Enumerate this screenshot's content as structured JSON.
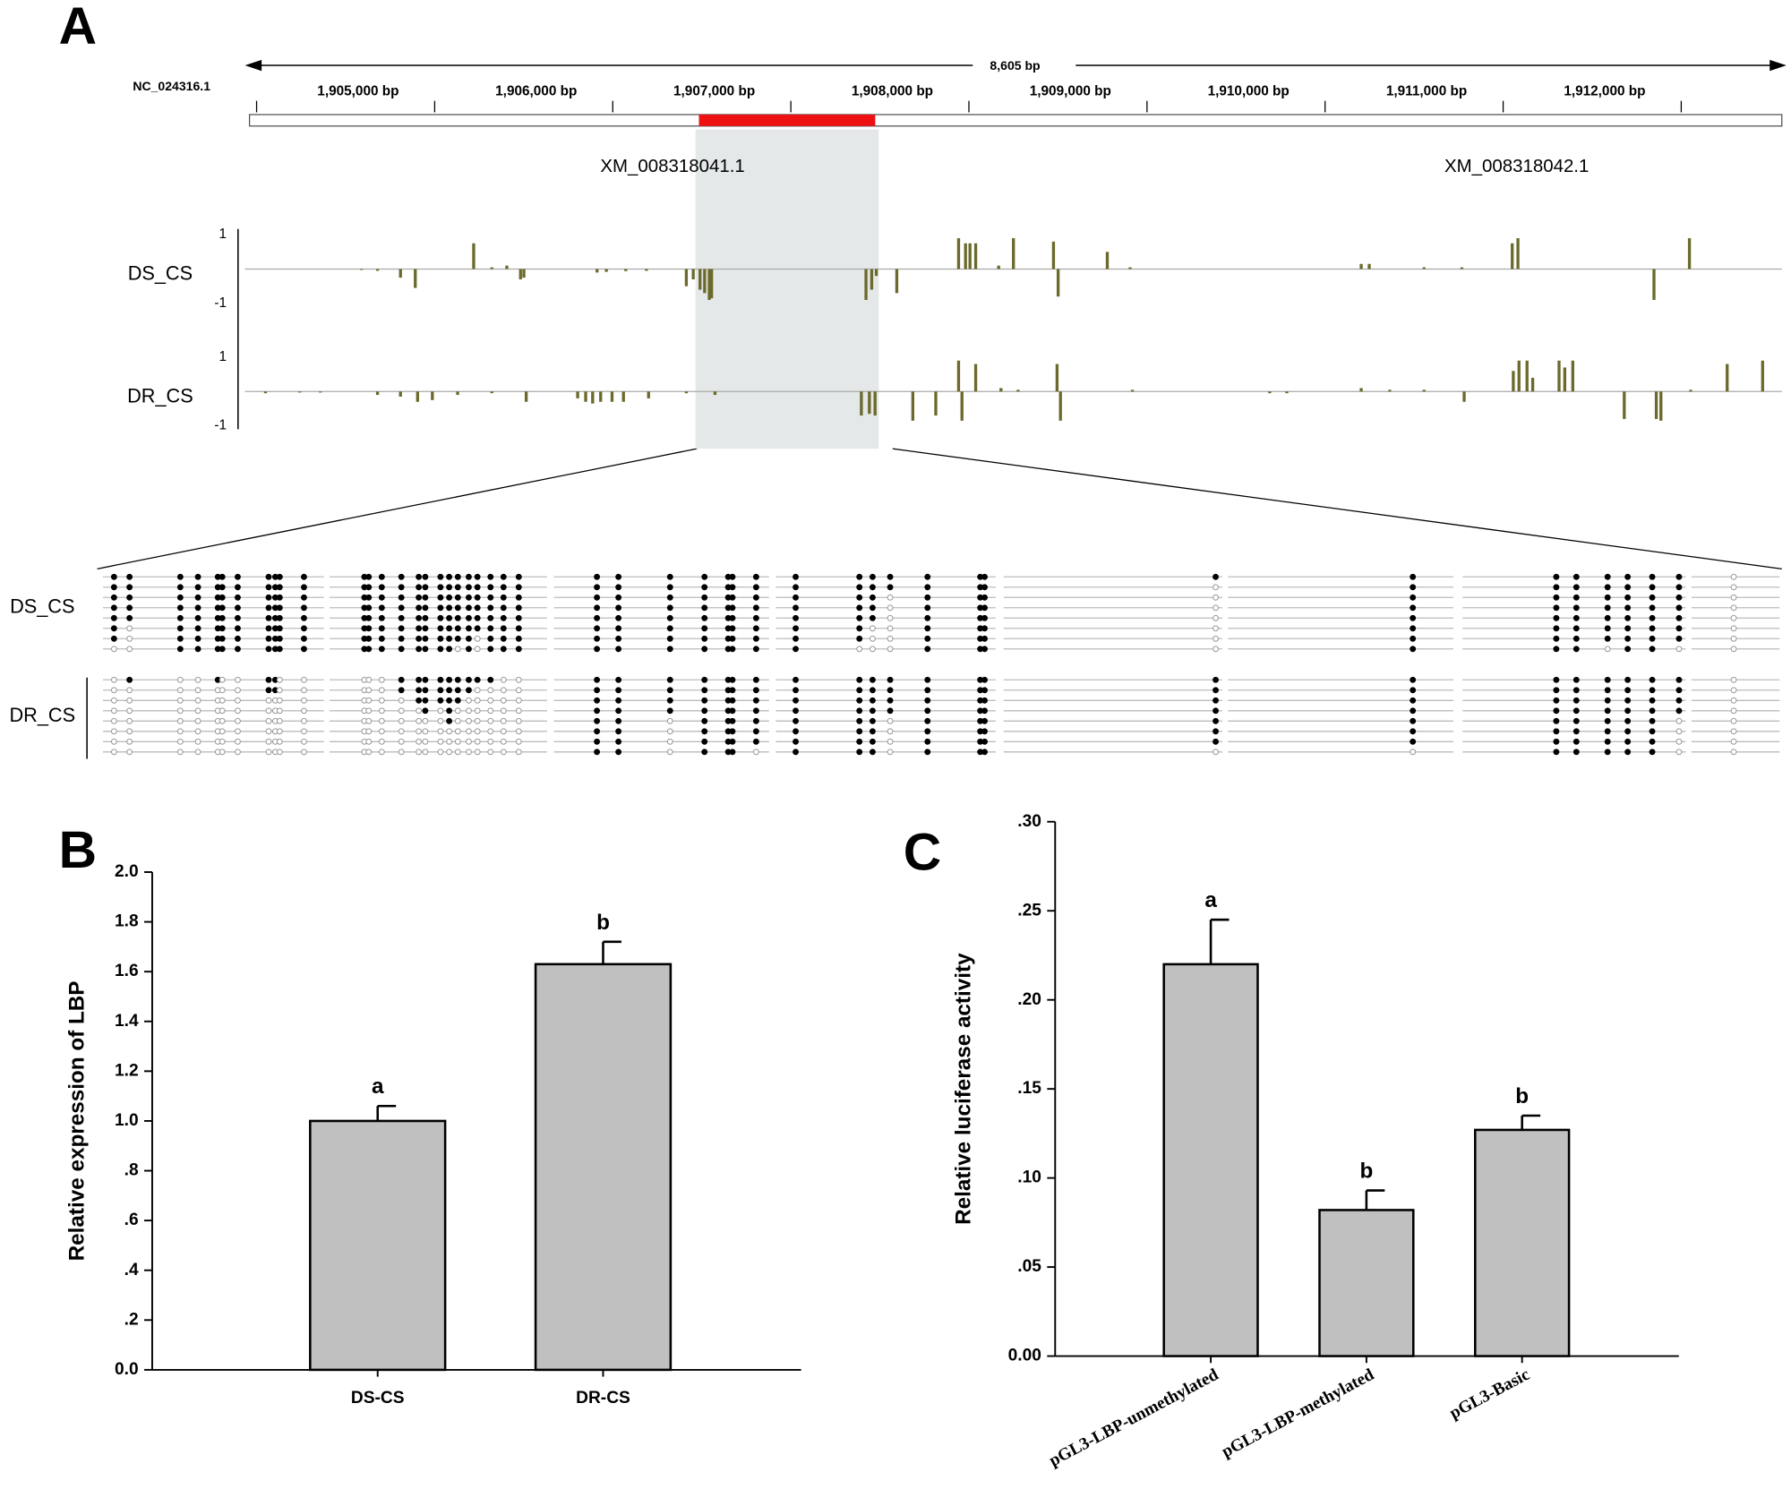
{
  "panel_labels": [
    "A",
    "B",
    "C"
  ],
  "genome": {
    "chromosome": "NC_024316.1",
    "span_label": "8,605 bp",
    "xlim": [
      1904390,
      1912995
    ],
    "xticks": [
      {
        "value": 1905000,
        "label": "1,905,000 bp"
      },
      {
        "value": 1906000,
        "label": "1,906,000 bp"
      },
      {
        "value": 1907000,
        "label": "1,907,000 bp"
      },
      {
        "value": 1908000,
        "label": "1,908,000 bp"
      },
      {
        "value": 1909000,
        "label": "1,909,000 bp"
      },
      {
        "value": 1910000,
        "label": "1,910,000 bp"
      },
      {
        "value": 1911000,
        "label": "1,911,000 bp"
      },
      {
        "value": 1912000,
        "label": "1,912,000 bp"
      }
    ],
    "minor_xticks": [
      1904430,
      1905430,
      1906430,
      1907430,
      1908430,
      1909430,
      1910430,
      1911430,
      1912430
    ],
    "region": [
      1906914,
      1907904
    ],
    "genes": [
      {
        "label": "XM_008318041.1",
        "position": 1906766
      },
      {
        "label": "XM_008318042.1",
        "position": 1911506
      }
    ],
    "color": "#6b6a2c",
    "ylim": [
      -1,
      1
    ],
    "yticks": [
      1,
      -1
    ],
    "tracks": [
      {
        "name": "DS_CS",
        "x": [
          1905019,
          1905109,
          1905238,
          1905321,
          1905649,
          1905751,
          1905835,
          1905912,
          1905931,
          1906342,
          1906394,
          1906503,
          1906619,
          1906843,
          1906882,
          1906920,
          1906946,
          1906972,
          1906985,
          1907852,
          1907884,
          1907910,
          1908025,
          1908372,
          1908411,
          1908436,
          1908468,
          1908597,
          1908680,
          1908905,
          1908931,
          1909207,
          1909335,
          1910633,
          1910678,
          1910986,
          1911198,
          1911481,
          1911513,
          1912277,
          1912476
        ],
        "values": [
          -0.02,
          -0.05,
          -0.25,
          -0.55,
          0.75,
          0.05,
          0.1,
          -0.3,
          -0.25,
          -0.1,
          -0.08,
          -0.06,
          -0.05,
          -0.5,
          -0.3,
          -0.6,
          -0.7,
          -0.9,
          -0.85,
          -0.9,
          -0.6,
          -0.2,
          -0.7,
          0.9,
          0.75,
          0.75,
          0.75,
          0.1,
          0.9,
          0.8,
          -0.8,
          0.5,
          0.05,
          0.15,
          0.15,
          0.05,
          0.05,
          0.75,
          0.9,
          -0.9,
          0.9
        ]
      },
      {
        "name": "DR_CS",
        "x": [
          1904480,
          1904672,
          1904788,
          1905109,
          1905238,
          1905334,
          1905417,
          1905559,
          1905751,
          1905944,
          1906233,
          1906278,
          1906317,
          1906362,
          1906426,
          1906490,
          1906631,
          1906843,
          1907004,
          1907826,
          1907871,
          1907903,
          1908115,
          1908244,
          1908372,
          1908391,
          1908468,
          1908610,
          1908706,
          1908925,
          1908944,
          1909348,
          1910119,
          1910215,
          1910633,
          1910793,
          1910986,
          1911211,
          1911487,
          1911519,
          1911564,
          1911596,
          1911744,
          1911776,
          1911821,
          1912110,
          1912290,
          1912316,
          1912483,
          1912688,
          1912887
        ],
        "values": [
          -0.05,
          -0.03,
          -0.03,
          -0.1,
          -0.15,
          -0.3,
          -0.25,
          -0.1,
          -0.05,
          -0.3,
          -0.2,
          -0.3,
          -0.35,
          -0.3,
          -0.3,
          -0.3,
          -0.2,
          -0.05,
          -0.1,
          -0.7,
          -0.65,
          -0.7,
          -0.85,
          -0.7,
          0.9,
          -0.85,
          0.8,
          0.1,
          0.05,
          0.8,
          -0.85,
          0.05,
          -0.05,
          -0.05,
          0.1,
          0.05,
          0.05,
          -0.3,
          0.6,
          0.9,
          0.9,
          0.4,
          0.9,
          0.7,
          0.9,
          -0.8,
          -0.8,
          -0.85,
          0.05,
          0.8,
          0.9
        ]
      }
    ]
  },
  "methylation": {
    "clones": 8,
    "samples": [
      {
        "name": "DS_CS",
        "segments": [
          {
            "sites": [
              0.05,
              0.12,
              0.35,
              0.43,
              0.52,
              0.54,
              0.61,
              0.75,
              0.78,
              0.8,
              0.91
            ],
            "methylated": [
              7,
              5,
              8,
              8,
              8,
              8,
              8,
              8,
              8,
              8,
              8
            ]
          },
          {
            "sites": [
              0.16,
              0.18,
              0.24,
              0.33,
              0.41,
              0.44,
              0.51,
              0.55,
              0.59,
              0.64,
              0.68,
              0.74,
              0.8,
              0.87
            ],
            "methylated": [
              8,
              8,
              8,
              8,
              8,
              8,
              8,
              8,
              7,
              8,
              6,
              8,
              8,
              8
            ]
          },
          {
            "sites": [
              0.2,
              0.3,
              0.54,
              0.7,
              0.81,
              0.83,
              0.94
            ],
            "methylated": [
              8,
              8,
              8,
              8,
              8,
              8,
              8
            ]
          },
          {
            "sites": [
              0.09,
              0.38,
              0.44,
              0.52,
              0.69,
              0.93,
              0.95
            ],
            "methylated": [
              8,
              7,
              5,
              2,
              8,
              8,
              8
            ]
          },
          {
            "sites": [
              0.97
            ],
            "methylated": [
              1
            ]
          },
          {
            "sites": [
              0.82
            ],
            "methylated": [
              8
            ]
          },
          {
            "sites": [
              0.42,
              0.51,
              0.65,
              0.74,
              0.85,
              0.97
            ],
            "methylated": [
              8,
              8,
              7,
              8,
              8,
              7
            ]
          },
          {
            "sites": [
              0.48
            ],
            "methylated": [
              0
            ]
          }
        ]
      },
      {
        "name": "DR_CS",
        "segments": [
          {
            "sites": [
              0.05,
              0.12,
              0.35,
              0.43,
              0.52,
              0.54,
              0.61,
              0.75,
              0.78,
              0.8,
              0.91
            ],
            "methylated": [
              0,
              1,
              0,
              0,
              1,
              0,
              0,
              2,
              2,
              0,
              0
            ]
          },
          {
            "sites": [
              0.16,
              0.18,
              0.24,
              0.33,
              0.41,
              0.44,
              0.51,
              0.55,
              0.59,
              0.64,
              0.68,
              0.74,
              0.8,
              0.87
            ],
            "methylated": [
              0,
              0,
              0,
              2,
              3,
              4,
              3,
              5,
              3,
              2,
              1,
              1,
              0,
              0
            ]
          },
          {
            "sites": [
              0.2,
              0.3,
              0.54,
              0.7,
              0.81,
              0.83,
              0.94
            ],
            "methylated": [
              8,
              8,
              4,
              8,
              8,
              8,
              7
            ]
          },
          {
            "sites": [
              0.09,
              0.38,
              0.44,
              0.52,
              0.69,
              0.93,
              0.95
            ],
            "methylated": [
              8,
              8,
              8,
              4,
              8,
              8,
              8
            ]
          },
          {
            "sites": [
              0.97
            ],
            "methylated": [
              7
            ]
          },
          {
            "sites": [
              0.82
            ],
            "methylated": [
              7
            ]
          },
          {
            "sites": [
              0.42,
              0.51,
              0.65,
              0.74,
              0.85,
              0.97
            ],
            "methylated": [
              8,
              8,
              8,
              8,
              8,
              4
            ]
          },
          {
            "sites": [
              0.48
            ],
            "methylated": [
              0
            ]
          }
        ]
      }
    ]
  },
  "chart_data": [
    {
      "type": "bar",
      "ylabel": "Relative expression of LBP",
      "categories": [
        "DS-CS",
        "DR-CS"
      ],
      "values": [
        1.0,
        1.63
      ],
      "errors": [
        0.06,
        0.09
      ],
      "annotations": [
        "a",
        "b"
      ],
      "color": "#c0c0c0",
      "ylim": [
        0,
        2
      ],
      "yticks": [
        {
          "value": 0,
          "label": "0.0"
        },
        {
          "value": 0.2,
          "label": ".2"
        },
        {
          "value": 0.4,
          "label": ".4"
        },
        {
          "value": 0.6,
          "label": ".6"
        },
        {
          "value": 0.8,
          "label": ".8"
        },
        {
          "value": 1,
          "label": "1.0"
        },
        {
          "value": 1.2,
          "label": "1.2"
        },
        {
          "value": 1.4,
          "label": "1.4"
        },
        {
          "value": 1.6,
          "label": "1.6"
        },
        {
          "value": 1.8,
          "label": "1.8"
        },
        {
          "value": 2,
          "label": "2.0"
        }
      ]
    },
    {
      "type": "bar",
      "ylabel": "Relative luciferase activity",
      "categories": [
        "pGL3-LBP-unmethylated",
        "pGL3-LBP-methylated",
        "pGL3-Basic"
      ],
      "values": [
        0.22,
        0.082,
        0.127
      ],
      "errors": [
        0.025,
        0.011,
        0.008
      ],
      "annotations": [
        "a",
        "b",
        "b"
      ],
      "color": "#c0c0c0",
      "ylim": [
        0,
        0.3
      ],
      "yticks": [
        {
          "value": 0,
          "label": "0.00"
        },
        {
          "value": 0.05,
          "label": ".05"
        },
        {
          "value": 0.1,
          "label": ".10"
        },
        {
          "value": 0.15,
          "label": ".15"
        },
        {
          "value": 0.2,
          "label": ".20"
        },
        {
          "value": 0.25,
          "label": ".25"
        },
        {
          "value": 0.3,
          "label": ".30"
        }
      ]
    }
  ]
}
